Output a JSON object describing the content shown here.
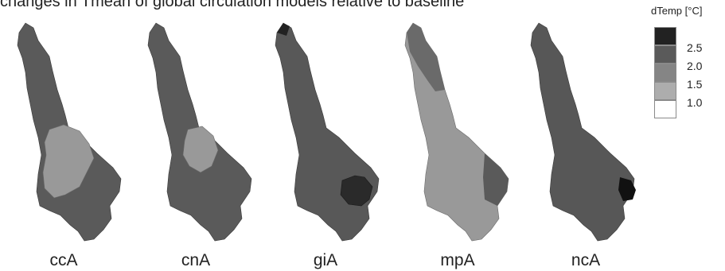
{
  "figure": {
    "title_text": "changes in Tmean of global circulation models relative to baseline",
    "legend_title": "dTemp [°C]",
    "legend_ticks": [
      "2.5",
      "2.0",
      "1.5",
      "1.0"
    ],
    "legend_bins": [
      {
        "range": "> 2.5",
        "color": "#222222"
      },
      {
        "range": "2.0 – 2.5",
        "color": "#5a5a5a"
      },
      {
        "range": "1.5 – 2.0",
        "color": "#858585"
      },
      {
        "range": "1.0 – 1.5",
        "color": "#adadad"
      },
      {
        "range": "< 1.0",
        "color": "#ffffff"
      }
    ],
    "maps": [
      {
        "label": "ccA"
      },
      {
        "label": "cnA"
      },
      {
        "label": "giA"
      },
      {
        "label": "mpA"
      },
      {
        "label": "ncA"
      }
    ]
  }
}
